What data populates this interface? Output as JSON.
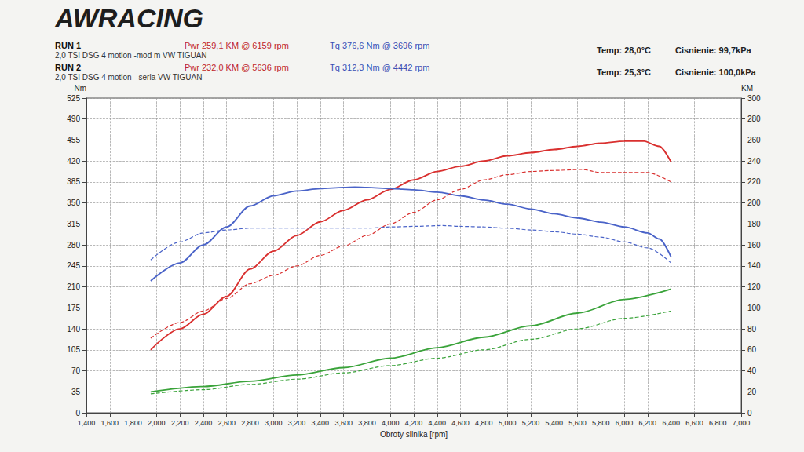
{
  "chart_data": {
    "type": "line",
    "title": "AWRACING",
    "runs": [
      {
        "label": "RUN 1",
        "car": "2,0 TSI DSG 4 motion -mod m VW TIGUAN",
        "power": "Pwr 259,1 KM @ 6159 rpm",
        "torque": "Tq 376,6 Nm @ 3696 rpm",
        "temp": "Temp: 28,0°C",
        "pressure": "Cisnienie: 99,7kPa",
        "line_style": "solid"
      },
      {
        "label": "RUN 2",
        "car": "2,0 TSI DSG 4 motion - seria VW TIGUAN",
        "power": "Pwr 232,0 KM @ 5636 rpm",
        "torque": "Tq 312,3 Nm @ 4442 rpm",
        "temp": "Temp: 25,3°C",
        "pressure": "Cisnienie: 100,0kPa",
        "line_style": "dashed"
      }
    ],
    "x_label": "Obroty silnika [rpm]",
    "y_label": "Nm",
    "y2_label": "KM",
    "xlim": [
      1400,
      7000
    ],
    "xticks": [
      1400,
      1600,
      1800,
      2000,
      2200,
      2400,
      2600,
      2800,
      3000,
      3200,
      3400,
      3600,
      3800,
      4000,
      4200,
      4400,
      4600,
      4800,
      5000,
      5200,
      5400,
      5600,
      5800,
      6000,
      6200,
      6400,
      6600,
      6800,
      7000
    ],
    "ylim": [
      0,
      525
    ],
    "yticks": [
      0,
      35,
      70,
      105,
      140,
      175,
      210,
      245,
      280,
      315,
      350,
      385,
      420,
      455,
      490,
      525
    ],
    "y2lim": [
      0,
      300
    ],
    "y2ticks": [
      0,
      20,
      40,
      60,
      80,
      100,
      120,
      140,
      160,
      180,
      200,
      220,
      240,
      260,
      280,
      300
    ],
    "grid": true,
    "series": [
      {
        "color": "#d9302f",
        "line_style": "solid",
        "axis": "y2",
        "x": [
          1950,
          2200,
          2400,
          2600,
          2800,
          3000,
          3200,
          3400,
          3600,
          3800,
          4000,
          4200,
          4400,
          4600,
          4800,
          5000,
          5200,
          5400,
          5600,
          5800,
          6000,
          6159,
          6300,
          6400
        ],
        "values": [
          60,
          80,
          94,
          111,
          137,
          154,
          169,
          182,
          193,
          203,
          213,
          222,
          230,
          235,
          240,
          245,
          248,
          251,
          254,
          257,
          259,
          259.1,
          254,
          239
        ]
      },
      {
        "color": "#4a63c8",
        "line_style": "solid",
        "x": [
          1950,
          2200,
          2400,
          2600,
          2800,
          3000,
          3200,
          3400,
          3600,
          3696,
          3800,
          4000,
          4200,
          4400,
          4600,
          4800,
          5000,
          5200,
          5400,
          5600,
          5800,
          6000,
          6200,
          6300,
          6400
        ],
        "values": [
          220,
          250,
          280,
          310,
          345,
          362,
          370,
          374,
          376,
          376.6,
          376,
          374,
          372,
          368,
          362,
          355,
          348,
          340,
          332,
          325,
          318,
          310,
          300,
          290,
          260
        ]
      },
      {
        "color": "#3aa33a",
        "line_style": "solid",
        "axis": "y2",
        "x": [
          1950,
          2400,
          2800,
          3200,
          3600,
          4000,
          4400,
          4800,
          5200,
          5600,
          6000,
          6400
        ],
        "values": [
          20,
          25,
          30,
          36,
          43,
          52,
          62,
          72,
          83,
          95,
          108,
          118
        ]
      },
      {
        "color": "#d9302f",
        "line_style": "dashed",
        "axis": "y2",
        "x": [
          1950,
          2200,
          2400,
          2600,
          2800,
          3000,
          3200,
          3400,
          3600,
          3800,
          4000,
          4200,
          4400,
          4600,
          4800,
          5000,
          5200,
          5400,
          5636,
          5800,
          6000,
          6200,
          6400
        ],
        "values": [
          71,
          86,
          97,
          109,
          123,
          131,
          140,
          150,
          159,
          169,
          180,
          191,
          203,
          213,
          222,
          227,
          230,
          231,
          232,
          229,
          229,
          229,
          220
        ]
      },
      {
        "color": "#4a63c8",
        "line_style": "dashed",
        "x": [
          1950,
          2200,
          2400,
          2600,
          2800,
          3000,
          3200,
          3400,
          3600,
          3800,
          4000,
          4200,
          4442,
          4600,
          4800,
          5000,
          5200,
          5400,
          5600,
          5800,
          6000,
          6200,
          6400
        ],
        "values": [
          255,
          285,
          300,
          305,
          308,
          308,
          308,
          308,
          308,
          308,
          310,
          311,
          312.3,
          311,
          310,
          308,
          305,
          302,
          298,
          293,
          285,
          275,
          250
        ]
      },
      {
        "color": "#3aa33a",
        "line_style": "dashed",
        "axis": "y2",
        "x": [
          1950,
          2400,
          2800,
          3200,
          3600,
          4000,
          4400,
          4800,
          5200,
          5600,
          6000,
          6400
        ],
        "values": [
          18,
          22,
          27,
          32,
          38,
          45,
          52,
          60,
          70,
          80,
          90,
          97
        ]
      }
    ]
  }
}
